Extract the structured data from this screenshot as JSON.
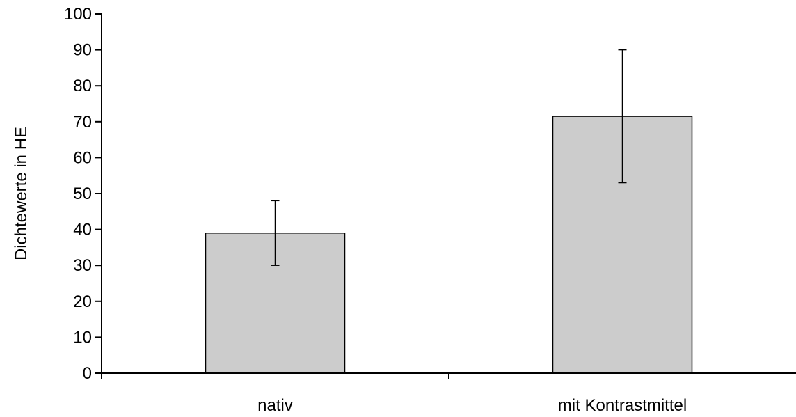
{
  "chart_data": {
    "type": "bar",
    "title": "",
    "xlabel": "",
    "ylabel": "Dichtewerte in HE",
    "categories": [
      "nativ",
      "mit Kontrastmittel"
    ],
    "values": [
      39,
      71.5
    ],
    "error_bars": [
      {
        "low": 30,
        "high": 48
      },
      {
        "low": 53,
        "high": 90
      }
    ],
    "ylim": [
      0,
      100
    ],
    "yticks": [
      0,
      10,
      20,
      30,
      40,
      50,
      60,
      70,
      80,
      90,
      100
    ],
    "grid": false,
    "legend": "none",
    "bar_color": "#cccccc",
    "bar_edge_color": "#000000"
  }
}
